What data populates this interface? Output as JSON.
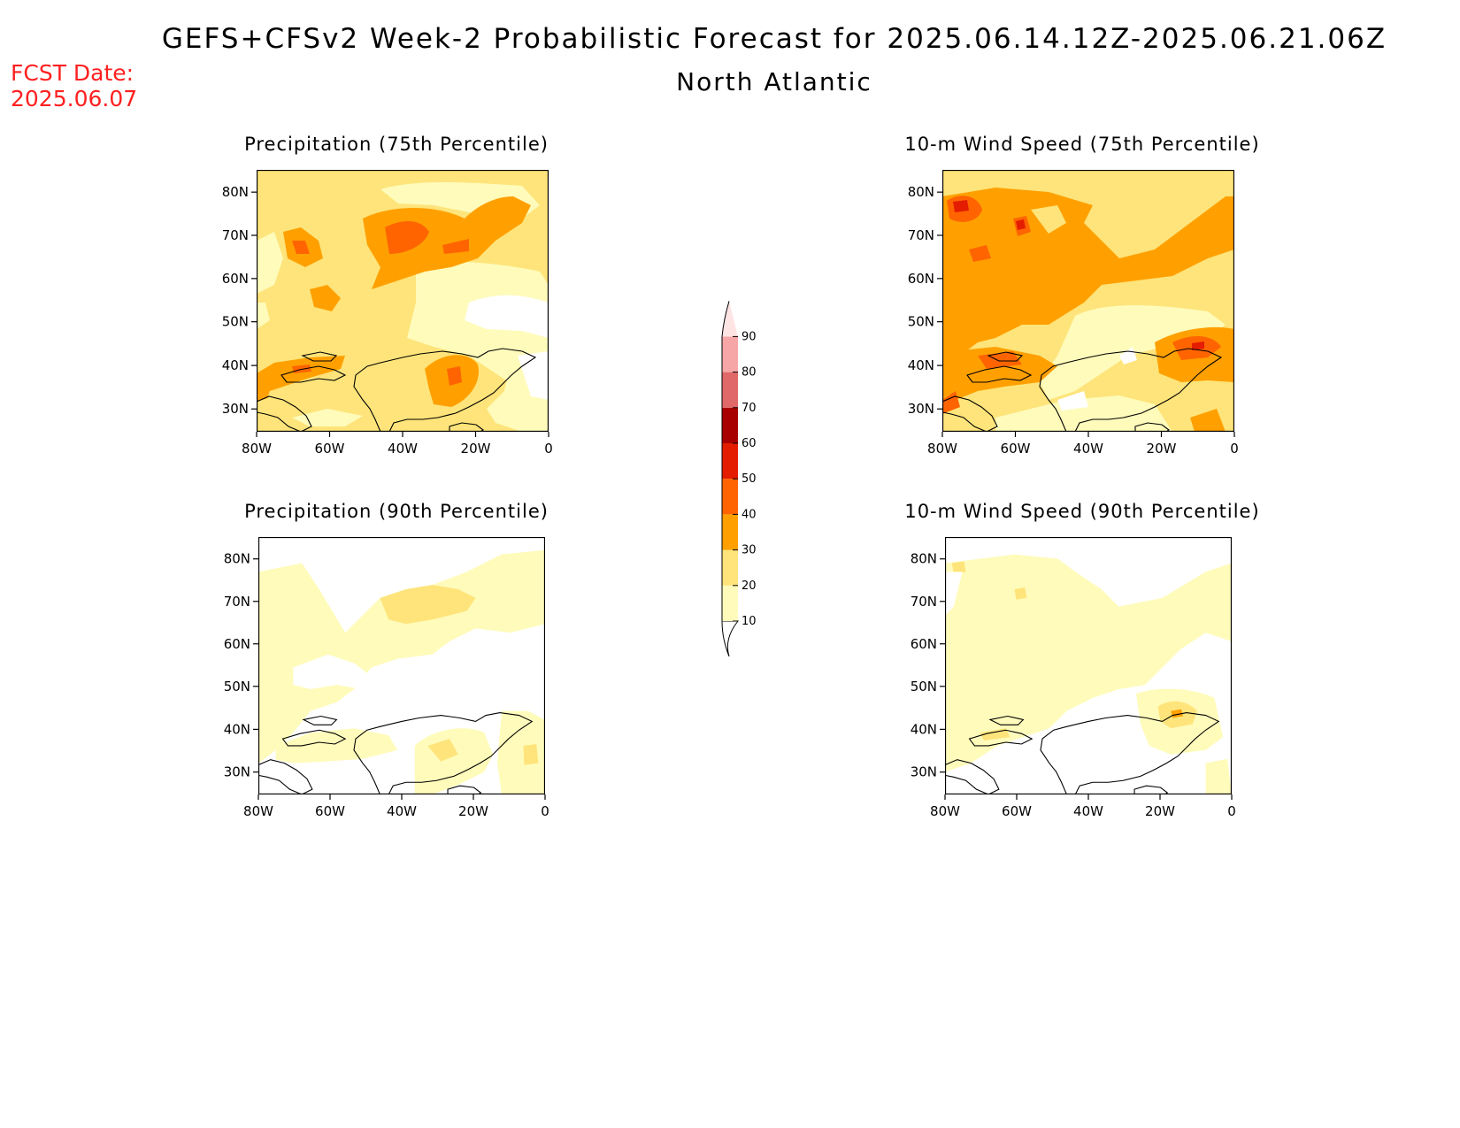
{
  "header": {
    "title": "GEFS+CFSv2 Week-2 Probabilistic Forecast for 2025.06.14.12Z-2025.06.21.06Z",
    "region": "North Atlantic",
    "fcst_label": "FCST Date:",
    "fcst_date": "2025.06.07"
  },
  "axes": {
    "lat_ticks": [
      "80N",
      "70N",
      "60N",
      "50N",
      "40N",
      "30N"
    ],
    "lon_ticks": [
      "80W",
      "60W",
      "40W",
      "20W",
      "0"
    ]
  },
  "panels": [
    {
      "title": "Precipitation (75th Percentile)",
      "field": "precip_75",
      "base_level": 20
    },
    {
      "title": "10-m Wind Speed (75th Percentile)",
      "field": "wind_75",
      "base_level": 20
    },
    {
      "title": "Precipitation (90th Percentile)",
      "field": "precip_90",
      "base_level": 0
    },
    {
      "title": "10-m Wind Speed (90th Percentile)",
      "field": "wind_90",
      "base_level": 0
    }
  ],
  "colorbar": {
    "levels": [
      "10",
      "20",
      "30",
      "40",
      "50",
      "60",
      "70",
      "80",
      "90"
    ],
    "colors": [
      "#fffbbb",
      "#fee47a",
      "#ffa000",
      "#ff6400",
      "#e41c00",
      "#a80000",
      "#e06868",
      "#f6a6a6",
      "#ffe4e4"
    ]
  }
}
